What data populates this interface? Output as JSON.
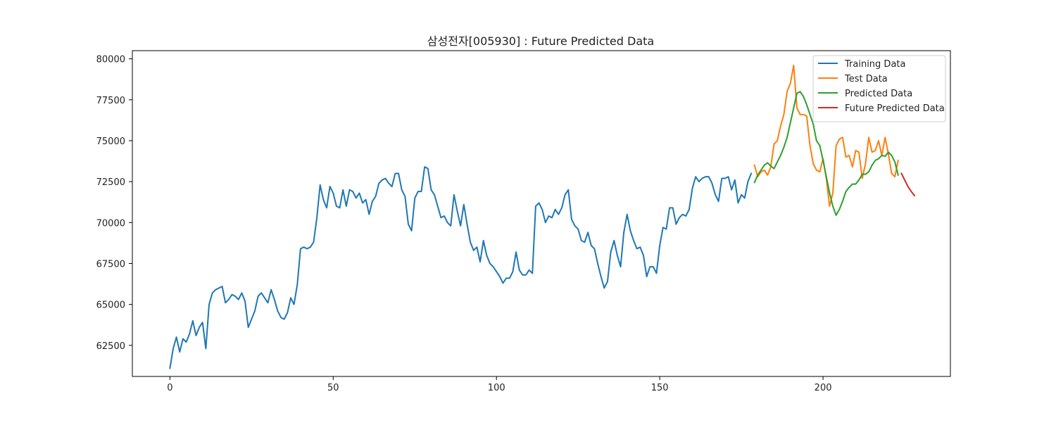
{
  "chart_data": {
    "type": "line",
    "title": "삼성전자[005930] : Future Predicted Data",
    "xlabel": "",
    "ylabel": "",
    "xlim": [
      -11.5,
      239
    ],
    "ylim": [
      60600,
      80500
    ],
    "xticks": [
      0,
      50,
      100,
      150,
      200
    ],
    "yticks": [
      62500,
      65000,
      67500,
      70000,
      72500,
      75000,
      77500,
      80000
    ],
    "grid": false,
    "legend_position": "top-right",
    "series": [
      {
        "name": "Training Data",
        "color": "#1f77b4",
        "x": [
          0,
          1,
          2,
          3,
          4,
          5,
          6,
          7,
          8,
          9,
          10,
          11,
          12,
          13,
          14,
          15,
          16,
          17,
          18,
          19,
          20,
          21,
          22,
          23,
          24,
          25,
          26,
          27,
          28,
          29,
          30,
          31,
          32,
          33,
          34,
          35,
          36,
          37,
          38,
          39,
          40,
          41,
          42,
          43,
          44,
          45,
          46,
          47,
          48,
          49,
          50,
          51,
          52,
          53,
          54,
          55,
          56,
          57,
          58,
          59,
          60,
          61,
          62,
          63,
          64,
          65,
          66,
          67,
          68,
          69,
          70,
          71,
          72,
          73,
          74,
          75,
          76,
          77,
          78,
          79,
          80,
          81,
          82,
          83,
          84,
          85,
          86,
          87,
          88,
          89,
          90,
          91,
          92,
          93,
          94,
          95,
          96,
          97,
          98,
          99,
          100,
          101,
          102,
          103,
          104,
          105,
          106,
          107,
          108,
          109,
          110,
          111,
          112,
          113,
          114,
          115,
          116,
          117,
          118,
          119,
          120,
          121,
          122,
          123,
          124,
          125,
          126,
          127,
          128,
          129,
          130,
          131,
          132,
          133,
          134,
          135,
          136,
          137,
          138,
          139,
          140,
          141,
          142,
          143,
          144,
          145,
          146,
          147,
          148,
          149,
          150,
          151,
          152,
          153,
          154,
          155,
          156,
          157,
          158,
          159,
          160,
          161,
          162,
          163,
          164,
          165,
          166,
          167,
          168,
          169,
          170,
          171,
          172,
          173,
          174,
          175,
          176,
          177,
          178
        ],
        "values": [
          61100,
          62300,
          63000,
          62100,
          62900,
          62700,
          63200,
          64000,
          63100,
          63600,
          63900,
          62300,
          65000,
          65700,
          65900,
          66000,
          66100,
          65100,
          65300,
          65600,
          65500,
          65300,
          65700,
          65200,
          63600,
          64100,
          64600,
          65500,
          65700,
          65400,
          65100,
          65900,
          65300,
          64600,
          64200,
          64100,
          64500,
          65400,
          65000,
          66200,
          68400,
          68500,
          68400,
          68500,
          68800,
          70300,
          72300,
          71400,
          70900,
          72200,
          71800,
          71000,
          70900,
          72000,
          71000,
          72000,
          71900,
          71500,
          71800,
          71200,
          71400,
          70500,
          71300,
          71600,
          72400,
          72600,
          72700,
          72400,
          72200,
          73000,
          73000,
          72000,
          71600,
          69900,
          69500,
          71500,
          71900,
          71900,
          73400,
          73300,
          72000,
          71700,
          71000,
          70300,
          70400,
          70000,
          69800,
          71700,
          70700,
          69800,
          71100,
          69900,
          68800,
          68300,
          68500,
          67600,
          68900,
          68000,
          67500,
          67300,
          67000,
          66700,
          66300,
          66600,
          66600,
          67000,
          68200,
          67100,
          66800,
          66800,
          67100,
          66900,
          71000,
          71200,
          70800,
          70000,
          70400,
          70300,
          70800,
          70500,
          70900,
          71700,
          72000,
          70200,
          69800,
          69600,
          68900,
          68800,
          69400,
          68600,
          68400,
          67500,
          66700,
          66000,
          66400,
          68200,
          68900,
          68000,
          67300,
          69400,
          70500,
          69500,
          68900,
          68400,
          68500,
          68000,
          66700,
          67300,
          67300,
          66900,
          68600,
          69700,
          69600,
          70900,
          70900,
          69900,
          70300,
          70500,
          70400,
          70800,
          72100,
          72800,
          72500,
          72700,
          72800,
          72800,
          72400,
          71700,
          71300,
          72700,
          72700,
          72800,
          72000,
          72600,
          71200,
          71700,
          71500,
          72500,
          73000
        ]
      },
      {
        "name": "Test Data",
        "color": "#ff7f0e",
        "x": [
          179,
          180,
          181,
          182,
          183,
          184,
          185,
          186,
          187,
          188,
          189,
          190,
          191,
          192,
          193,
          194,
          195,
          196,
          197,
          198,
          199,
          200,
          201,
          202,
          203,
          204,
          205,
          206,
          207,
          208,
          209,
          210,
          211,
          212,
          213,
          214,
          215,
          216,
          217,
          218,
          219,
          220,
          221,
          222,
          223
        ],
        "values": [
          73500,
          72800,
          73100,
          73200,
          72900,
          73400,
          74800,
          75000,
          75900,
          76600,
          78000,
          78500,
          79600,
          77000,
          76600,
          76600,
          76500,
          74700,
          73600,
          73200,
          73100,
          73900,
          72700,
          71000,
          71800,
          74700,
          75100,
          75200,
          74000,
          74100,
          73400,
          74400,
          74300,
          72700,
          73600,
          75200,
          74300,
          74400,
          75000,
          74100,
          75200,
          74200,
          73000,
          72800,
          73800
        ]
      },
      {
        "name": "Predicted Data",
        "color": "#2ca02c",
        "x": [
          179,
          180,
          181,
          182,
          183,
          184,
          185,
          186,
          187,
          188,
          189,
          190,
          191,
          192,
          193,
          194,
          195,
          196,
          197,
          198,
          199,
          200,
          201,
          202,
          203,
          204,
          205,
          206,
          207,
          208,
          209,
          210,
          211,
          212,
          213,
          214,
          215,
          216,
          217,
          218,
          219,
          220,
          221,
          222,
          223
        ],
        "values": [
          72450,
          72900,
          73200,
          73500,
          73650,
          73450,
          73300,
          73700,
          74100,
          74600,
          75200,
          76100,
          77000,
          77900,
          78000,
          77700,
          77200,
          76600,
          76000,
          75000,
          74700,
          73800,
          72800,
          71800,
          71000,
          70450,
          70800,
          71300,
          71900,
          72150,
          72350,
          72350,
          72600,
          72950,
          72950,
          73100,
          73500,
          73800,
          73900,
          74100,
          74050,
          74300,
          74100,
          73700,
          72900
        ]
      },
      {
        "name": "Future Predicted Data",
        "color": "#d62728",
        "x": [
          224,
          225,
          226,
          227,
          228
        ],
        "values": [
          73000,
          72600,
          72200,
          71900,
          71650
        ]
      }
    ]
  }
}
